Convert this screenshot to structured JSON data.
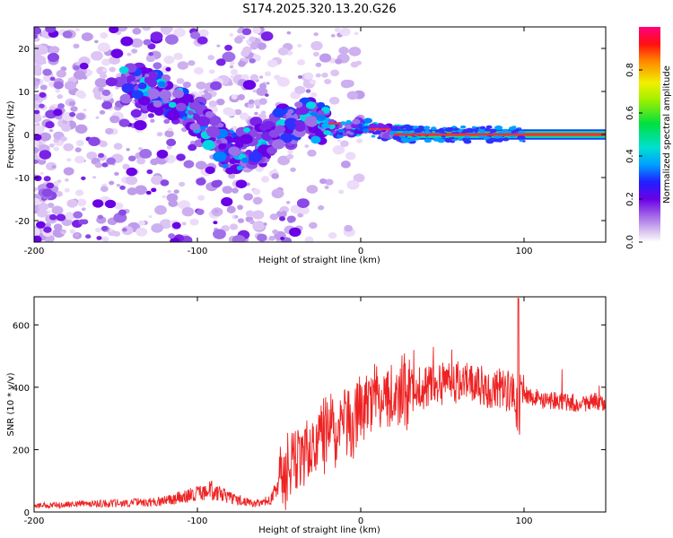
{
  "title": "S174.2025.320.13.20.G26",
  "chart_data": [
    {
      "type": "heatmap",
      "name": "spectrogram",
      "xlabel": "Height of straight line (km)",
      "ylabel": "Frequency (Hz)",
      "xlim": [
        -200,
        150
      ],
      "ylim": [
        -25,
        25
      ],
      "xticks": [
        -200,
        -100,
        0,
        100
      ],
      "yticks": [
        -20,
        -10,
        0,
        10,
        20
      ],
      "colorbar": {
        "label": "Normalized spectral amplitude",
        "range": [
          0,
          1
        ],
        "ticks": [
          0.0,
          0.2,
          0.4,
          0.6,
          0.8
        ],
        "tick_labels": [
          "0.0",
          "0.2",
          "0.4",
          "0.6",
          "0.8"
        ]
      },
      "ridge": [
        [
          -140,
          12
        ],
        [
          -120,
          9
        ],
        [
          -100,
          4
        ],
        [
          -90,
          0
        ],
        [
          -80,
          -4
        ],
        [
          -60,
          -2
        ],
        [
          -50,
          1
        ],
        [
          -35,
          4
        ],
        [
          -20,
          2
        ],
        [
          -10,
          1
        ],
        [
          0,
          2
        ],
        [
          10,
          1
        ],
        [
          20,
          0.5
        ],
        [
          40,
          0
        ],
        [
          60,
          0
        ],
        [
          80,
          0
        ],
        [
          100,
          0
        ],
        [
          120,
          0
        ],
        [
          150,
          0
        ]
      ]
    },
    {
      "type": "line",
      "name": "snr",
      "xlabel": "Height of straight line (km)",
      "ylabel": "SNR (10 * v/v)",
      "xlim": [
        -200,
        150
      ],
      "ylim": [
        0,
        690
      ],
      "xticks": [
        -200,
        -100,
        0,
        100
      ],
      "yticks": [
        0,
        200,
        400,
        600
      ],
      "color": "#ee2222",
      "trend": [
        [
          -200,
          20
        ],
        [
          -150,
          28
        ],
        [
          -120,
          35
        ],
        [
          -100,
          60
        ],
        [
          -90,
          70
        ],
        [
          -80,
          45
        ],
        [
          -65,
          25
        ],
        [
          -55,
          40
        ],
        [
          -45,
          140
        ],
        [
          -35,
          190
        ],
        [
          -25,
          240
        ],
        [
          -15,
          260
        ],
        [
          -5,
          290
        ],
        [
          0,
          340
        ],
        [
          10,
          360
        ],
        [
          20,
          370
        ],
        [
          30,
          390
        ],
        [
          40,
          400
        ],
        [
          50,
          410
        ],
        [
          60,
          420
        ],
        [
          70,
          410
        ],
        [
          80,
          400
        ],
        [
          90,
          390
        ],
        [
          95,
          370
        ],
        [
          100,
          380
        ],
        [
          110,
          360
        ],
        [
          120,
          355
        ],
        [
          130,
          350
        ],
        [
          150,
          355
        ]
      ]
    }
  ]
}
